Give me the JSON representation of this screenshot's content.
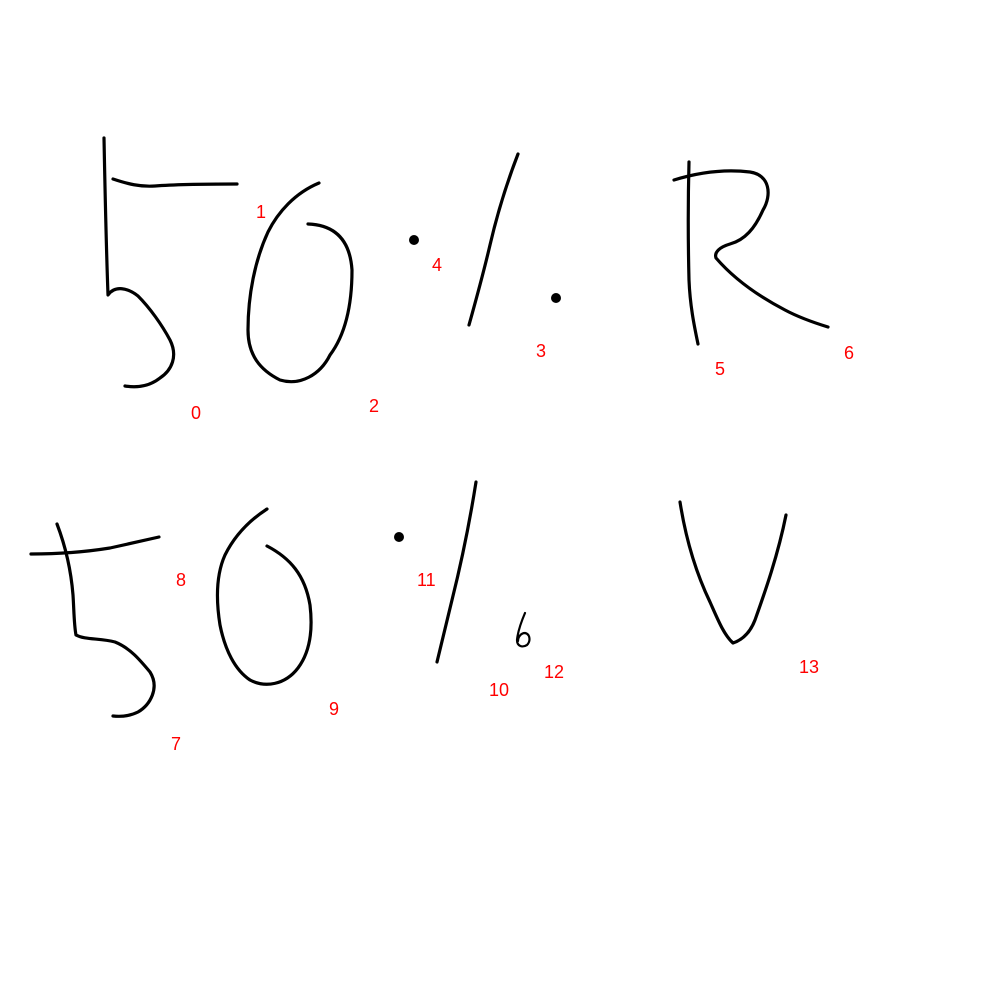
{
  "label_color": "#ff0000",
  "stroke_color": "#000000",
  "strokes": [
    {
      "id": "0",
      "label": "0"
    },
    {
      "id": "1",
      "label": "1"
    },
    {
      "id": "2",
      "label": "2"
    },
    {
      "id": "3",
      "label": "3"
    },
    {
      "id": "4",
      "label": "4"
    },
    {
      "id": "5",
      "label": "5"
    },
    {
      "id": "6",
      "label": "6"
    },
    {
      "id": "7",
      "label": "7"
    },
    {
      "id": "8",
      "label": "8"
    },
    {
      "id": "9",
      "label": "9"
    },
    {
      "id": "10",
      "label": "10"
    },
    {
      "id": "11",
      "label": "11"
    },
    {
      "id": "12",
      "label": "12"
    },
    {
      "id": "13",
      "label": "13"
    }
  ]
}
